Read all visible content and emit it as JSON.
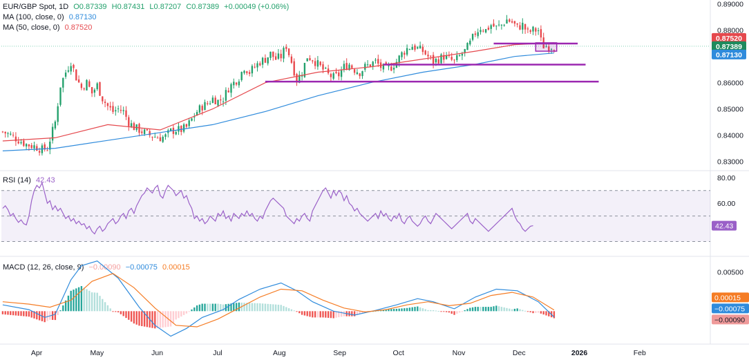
{
  "header": {
    "symbol": "EUR/GBP Spot, 1D",
    "open": "O0.87339",
    "high": "H0.87431",
    "low": "L0.87207",
    "close": "C0.87389",
    "change": "+0.00049 (+0.06%)"
  },
  "ma100": {
    "label": "MA (100, close, 0)",
    "value": "0.87130",
    "color": "#2f8bdc"
  },
  "ma50": {
    "label": "MA (50, close, 0)",
    "value": "0.87520",
    "color": "#e5484d"
  },
  "rsi": {
    "label": "RSI (14)",
    "value": "42.43",
    "color": "#9a60c8"
  },
  "macd": {
    "label": "MACD (12, 26, close, 9)",
    "hist_value": "−0.00090",
    "macd_value": "−0.00075",
    "signal_value": "0.00015",
    "hist_color": "#f7a5a5",
    "macd_color": "#2f8bdc",
    "signal_color": "#f57c24"
  },
  "colors": {
    "up": "#22a06b",
    "down": "#e8464a",
    "level": "#9b27b0"
  },
  "chart_data": [
    {
      "type": "candlestick",
      "title": "EUR/GBP Spot, 1D",
      "ylim": [
        0.827,
        0.8915
      ],
      "yticks": [
        "0.89000",
        "0.88000",
        "0.86000",
        "0.85000",
        "0.84000",
        "0.83000"
      ],
      "ytick_values": [
        0.89,
        0.88,
        0.86,
        0.85,
        0.84,
        0.83
      ],
      "price_labels": [
        {
          "value": "0.87520",
          "price": 0.8752,
          "color": "#e5484d"
        },
        {
          "value": "0.87389",
          "price": 0.87389,
          "color": "#1f8a5d"
        },
        {
          "value": "0.87130",
          "price": 0.8713,
          "color": "#2f8bdc"
        }
      ],
      "xticks": [
        "Apr",
        "May",
        "Jun",
        "Jul",
        "Aug",
        "Sep",
        "Oct",
        "Nov",
        "Dec",
        "2026",
        "Feb"
      ],
      "close_path": [
        [
          0,
          0.8413
        ],
        [
          3,
          0.84
        ],
        [
          6,
          0.8382
        ],
        [
          9,
          0.8365
        ],
        [
          12,
          0.8358
        ],
        [
          15,
          0.8345
        ],
        [
          17,
          0.835
        ],
        [
          20,
          0.845
        ],
        [
          22,
          0.859
        ],
        [
          24,
          0.864
        ],
        [
          26,
          0.868
        ],
        [
          28,
          0.862
        ],
        [
          30,
          0.858
        ],
        [
          32,
          0.86
        ],
        [
          34,
          0.856
        ],
        [
          36,
          0.859
        ],
        [
          38,
          0.854
        ],
        [
          40,
          0.851
        ],
        [
          42,
          0.849
        ],
        [
          44,
          0.85
        ],
        [
          46,
          0.849
        ],
        [
          48,
          0.845
        ],
        [
          50,
          0.843
        ],
        [
          52,
          0.842
        ],
        [
          54,
          0.841
        ],
        [
          56,
          0.84
        ],
        [
          58,
          0.8395
        ],
        [
          60,
          0.839
        ],
        [
          62,
          0.8395
        ],
        [
          64,
          0.8415
        ],
        [
          66,
          0.842
        ],
        [
          68,
          0.842
        ],
        [
          70,
          0.843
        ],
        [
          72,
          0.846
        ],
        [
          74,
          0.849
        ],
        [
          76,
          0.851
        ],
        [
          78,
          0.852
        ],
        [
          80,
          0.854
        ],
        [
          82,
          0.853
        ],
        [
          84,
          0.854
        ],
        [
          86,
          0.858
        ],
        [
          88,
          0.86
        ],
        [
          90,
          0.862
        ],
        [
          92,
          0.866
        ],
        [
          94,
          0.864
        ],
        [
          96,
          0.866
        ],
        [
          98,
          0.868
        ],
        [
          100,
          0.869
        ],
        [
          102,
          0.871
        ],
        [
          104,
          0.869
        ],
        [
          106,
          0.87
        ],
        [
          108,
          0.874
        ],
        [
          110,
          0.868
        ],
        [
          112,
          0.861
        ],
        [
          114,
          0.864
        ],
        [
          116,
          0.87
        ],
        [
          118,
          0.869
        ],
        [
          120,
          0.867
        ],
        [
          122,
          0.865
        ],
        [
          124,
          0.863
        ],
        [
          126,
          0.862
        ],
        [
          128,
          0.863
        ],
        [
          130,
          0.866
        ],
        [
          132,
          0.867
        ],
        [
          134,
          0.865
        ],
        [
          136,
          0.864
        ],
        [
          138,
          0.866
        ],
        [
          140,
          0.867
        ],
        [
          142,
          0.868
        ],
        [
          144,
          0.866
        ],
        [
          146,
          0.865
        ],
        [
          148,
          0.866
        ],
        [
          150,
          0.868
        ],
        [
          152,
          0.871
        ],
        [
          154,
          0.873
        ],
        [
          156,
          0.874
        ],
        [
          158,
          0.873
        ],
        [
          160,
          0.872
        ],
        [
          162,
          0.87
        ],
        [
          164,
          0.868
        ],
        [
          166,
          0.869
        ],
        [
          168,
          0.87
        ],
        [
          170,
          0.869
        ],
        [
          172,
          0.868
        ],
        [
          174,
          0.87
        ],
        [
          176,
          0.872
        ],
        [
          178,
          0.875
        ],
        [
          180,
          0.879
        ],
        [
          182,
          0.881
        ],
        [
          184,
          0.88
        ],
        [
          186,
          0.882
        ],
        [
          188,
          0.881
        ],
        [
          190,
          0.882
        ],
        [
          192,
          0.884
        ],
        [
          194,
          0.883
        ],
        [
          196,
          0.881
        ],
        [
          198,
          0.882
        ],
        [
          200,
          0.879
        ],
        [
          202,
          0.88
        ],
        [
          204,
          0.88
        ],
        [
          205,
          0.876
        ],
        [
          206,
          0.874
        ],
        [
          208,
          0.8738
        ],
        [
          210,
          0.8739
        ]
      ],
      "ma50_path": [
        [
          0,
          0.8378
        ],
        [
          20,
          0.839
        ],
        [
          40,
          0.844
        ],
        [
          60,
          0.842
        ],
        [
          80,
          0.85
        ],
        [
          100,
          0.86
        ],
        [
          120,
          0.864
        ],
        [
          140,
          0.866
        ],
        [
          160,
          0.869
        ],
        [
          180,
          0.872
        ],
        [
          195,
          0.8745
        ],
        [
          210,
          0.8752
        ]
      ],
      "ma100_path": [
        [
          0,
          0.834
        ],
        [
          20,
          0.835
        ],
        [
          40,
          0.838
        ],
        [
          60,
          0.841
        ],
        [
          80,
          0.844
        ],
        [
          100,
          0.849
        ],
        [
          120,
          0.855
        ],
        [
          140,
          0.86
        ],
        [
          160,
          0.864
        ],
        [
          180,
          0.867
        ],
        [
          195,
          0.87
        ],
        [
          210,
          0.8713
        ]
      ],
      "levels": [
        {
          "from": 187,
          "to": 219,
          "price": 0.8749
        },
        {
          "from": 145,
          "to": 222,
          "price": 0.8669
        },
        {
          "from": 100,
          "to": 227,
          "price": 0.8604
        }
      ],
      "highlight_box": {
        "from": 203,
        "to": 211,
        "price_top": 0.8752,
        "price_bottom": 0.872
      }
    },
    {
      "type": "line",
      "title": "RSI (14)",
      "ylim": [
        20,
        85
      ],
      "yticks": [
        "80.00",
        "60.00"
      ],
      "ytick_values": [
        80,
        60
      ],
      "bands": [
        70,
        50,
        30
      ],
      "last_value": "42.43",
      "series": [
        {
          "values": [
            56,
            58,
            55,
            50,
            52,
            48,
            45,
            47,
            44,
            43,
            50,
            62,
            70,
            74,
            72,
            76,
            68,
            60,
            62,
            55,
            58,
            54,
            56,
            52,
            48,
            50,
            46,
            48,
            44,
            46,
            43,
            44,
            40,
            42,
            38,
            36,
            40,
            42,
            38,
            40,
            44,
            46,
            48,
            44,
            46,
            50,
            52,
            48,
            54,
            56,
            52,
            58,
            62,
            66,
            68,
            72,
            70,
            68,
            72,
            74,
            66,
            64,
            70,
            74,
            72,
            70,
            66,
            68,
            70,
            64,
            66,
            60,
            56,
            48,
            50,
            46,
            48,
            44,
            46,
            50,
            48,
            46,
            52,
            50,
            54,
            48,
            50,
            46,
            52,
            50,
            48,
            52,
            50,
            54,
            50,
            52,
            48,
            46,
            50,
            48,
            54,
            58,
            62,
            64,
            62,
            60,
            58,
            56,
            50,
            48,
            46,
            44,
            48,
            46,
            50,
            52,
            48,
            46,
            54,
            58,
            62,
            66,
            70,
            72,
            68,
            64,
            70,
            66,
            70,
            68,
            62,
            66,
            60,
            58,
            54,
            56,
            52,
            50,
            48,
            46,
            48,
            50,
            52,
            48,
            54,
            50,
            52,
            48,
            46,
            50,
            48,
            52,
            46,
            44,
            48,
            50,
            46,
            44,
            42,
            44,
            48,
            50,
            46,
            44,
            48,
            52,
            50,
            48,
            46,
            44,
            42,
            40,
            42,
            44,
            46,
            48,
            50,
            52,
            46,
            44,
            48,
            46,
            44,
            42,
            40,
            38,
            40,
            42,
            44,
            46,
            48,
            50,
            52,
            54,
            56,
            50,
            46,
            44,
            40,
            38,
            40,
            42,
            42.43
          ]
        }
      ]
    },
    {
      "type": "line",
      "title": "MACD (12, 26, close, 9)",
      "ylim": [
        -0.0042,
        0.0069
      ],
      "yticks": [
        "0.00500"
      ],
      "ytick_values": [
        0.005
      ],
      "price_labels": [
        {
          "value": "0.00015",
          "color": "#f57c24",
          "y": 0.00015
        },
        {
          "value": "−0.00075",
          "color": "#2f8bdc",
          "y": -0.00075
        },
        {
          "value": "−0.00090",
          "color": "#ef9a9a",
          "y": -0.0009
        }
      ],
      "macd_path": [
        [
          0,
          0.0008
        ],
        [
          10,
          0.0002
        ],
        [
          16,
          -0.0008
        ],
        [
          20,
          -0.0004
        ],
        [
          26,
          0.004
        ],
        [
          30,
          0.0058
        ],
        [
          36,
          0.0064
        ],
        [
          44,
          0.0042
        ],
        [
          52,
          0.0005
        ],
        [
          58,
          -0.0018
        ],
        [
          64,
          -0.0032
        ],
        [
          70,
          -0.0022
        ],
        [
          76,
          -0.0008
        ],
        [
          84,
          0.0002
        ],
        [
          90,
          0.0015
        ],
        [
          98,
          0.0028
        ],
        [
          106,
          0.0036
        ],
        [
          112,
          0.0026
        ],
        [
          118,
          0.0012
        ],
        [
          126,
          0.0
        ],
        [
          134,
          -0.0005
        ],
        [
          142,
          0.0001
        ],
        [
          150,
          0.0008
        ],
        [
          158,
          0.0016
        ],
        [
          164,
          0.0012
        ],
        [
          172,
          0.0003
        ],
        [
          180,
          0.0018
        ],
        [
          188,
          0.0028
        ],
        [
          196,
          0.0026
        ],
        [
          204,
          0.0012
        ],
        [
          210,
          -0.00075
        ]
      ],
      "signal_path": [
        [
          0,
          0.0012
        ],
        [
          10,
          0.0009
        ],
        [
          18,
          0.0005
        ],
        [
          26,
          0.0014
        ],
        [
          34,
          0.0038
        ],
        [
          42,
          0.0048
        ],
        [
          50,
          0.003
        ],
        [
          58,
          0.0004
        ],
        [
          66,
          -0.0018
        ],
        [
          74,
          -0.002
        ],
        [
          82,
          -0.001
        ],
        [
          90,
          0.0004
        ],
        [
          98,
          0.0018
        ],
        [
          106,
          0.0028
        ],
        [
          114,
          0.0026
        ],
        [
          122,
          0.0014
        ],
        [
          130,
          0.0004
        ],
        [
          138,
          -0.0001
        ],
        [
          146,
          0.0002
        ],
        [
          154,
          0.0008
        ],
        [
          162,
          0.0012
        ],
        [
          170,
          0.0007
        ],
        [
          178,
          0.001
        ],
        [
          186,
          0.002
        ],
        [
          194,
          0.0024
        ],
        [
          202,
          0.0018
        ],
        [
          210,
          0.00015
        ]
      ]
    }
  ]
}
